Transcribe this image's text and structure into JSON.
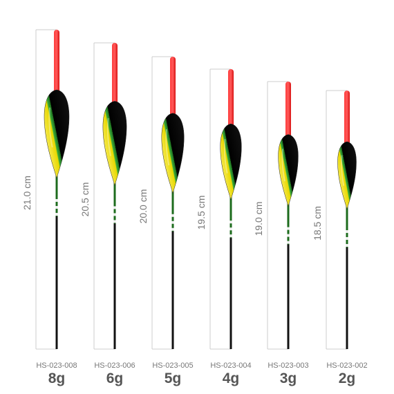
{
  "floats": [
    {
      "length": "21.0 cm",
      "code": "HS-023-008",
      "weight": "8g"
    },
    {
      "length": "20.5 cm",
      "code": "HS-023-006",
      "weight": "6g"
    },
    {
      "length": "20.0 cm",
      "code": "HS-023-005",
      "weight": "5g"
    },
    {
      "length": "19.5 cm",
      "code": "HS-023-004",
      "weight": "4g"
    },
    {
      "length": "19.0 cm",
      "code": "HS-023-003",
      "weight": "3g"
    },
    {
      "length": "18.5 cm",
      "code": "HS-023-002",
      "weight": "2g"
    }
  ]
}
